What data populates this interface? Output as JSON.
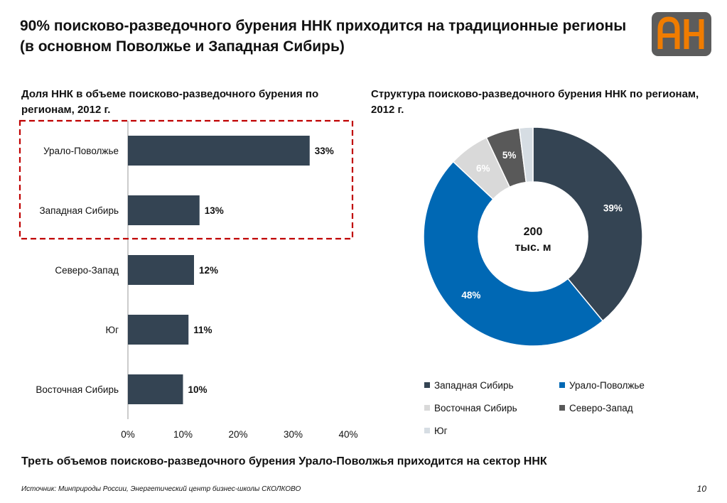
{
  "slide": {
    "title": "90% поисково-разведочного бурения ННК приходится на традиционные регионы (в основном Поволжье и Западная Сибирь)",
    "takeaway": "Треть объемов поисково-разведочного бурения Урало-Поволжья приходится на сектор ННК",
    "source": "Источник: Минприроды России, Энергетический центр бизнес-школы СКОЛКОВО",
    "page_number": "10",
    "logo_text": "АН"
  },
  "colors": {
    "dark_slate": "#344453",
    "blue": "#0068b4",
    "light_gray": "#d9d9d9",
    "mid_gray": "#595959",
    "pale_blue_gray": "#d6dde3",
    "highlight_red": "#c00000",
    "logo_bg": "#5c5c5c",
    "logo_orange": "#f07c00"
  },
  "chart_data": [
    {
      "type": "bar",
      "orientation": "horizontal",
      "title": "Доля ННК в объеме поисково-разведочного бурения по регионам, 2012 г.",
      "categories": [
        "Урало-Поволжье",
        "Западная Сибирь",
        "Северо-Запад",
        "Юг",
        "Восточная Сибирь"
      ],
      "values": [
        33,
        13,
        12,
        11,
        10
      ],
      "value_labels": [
        "33%",
        "13%",
        "12%",
        "11%",
        "10%"
      ],
      "xlim": [
        0,
        40
      ],
      "x_ticks": [
        0,
        10,
        20,
        30,
        40
      ],
      "x_tick_labels": [
        "0%",
        "10%",
        "20%",
        "30%",
        "40%"
      ],
      "grid": false,
      "highlighted_categories": [
        "Урало-Поволжье",
        "Западная Сибирь"
      ]
    },
    {
      "type": "pie",
      "style": "donut",
      "title": "Структура поисково-разведочного бурения ННК по регионам, 2012 г.",
      "center_label_line1": "200",
      "center_label_line2": "тыс. м",
      "slices": [
        {
          "name": "Западная Сибирь",
          "value": 39,
          "label": "39%",
          "color": "#344453",
          "label_color": "#ffffff"
        },
        {
          "name": "Урало-Поволжье",
          "value": 48,
          "label": "48%",
          "color": "#0068b4",
          "label_color": "#ffffff"
        },
        {
          "name": "Восточная Сибирь",
          "value": 6,
          "label": "6%",
          "color": "#d9d9d9",
          "label_color": "#ffffff"
        },
        {
          "name": "Северо-Запад",
          "value": 5,
          "label": "5%",
          "color": "#595959",
          "label_color": "#ffffff"
        },
        {
          "name": "Юг",
          "value": 2,
          "label": "",
          "color": "#d6dde3",
          "label_color": "#ffffff"
        }
      ],
      "legend_placement": "bottom",
      "legend": [
        "Западная Сибирь",
        "Урало-Поволжье",
        "Восточная Сибирь",
        "Северо-Запад",
        "Юг"
      ]
    }
  ]
}
